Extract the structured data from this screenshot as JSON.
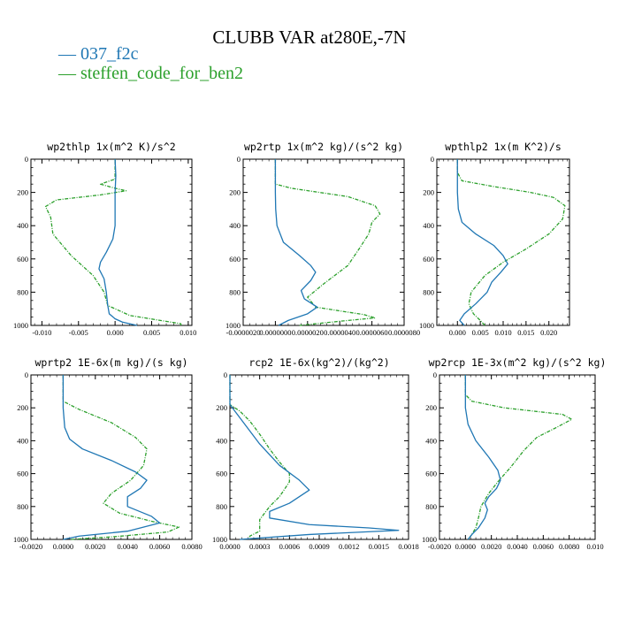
{
  "title": "CLUBB VAR at280E,-7N",
  "legend": [
    {
      "label": "037_f2c",
      "color": "#1f77b4"
    },
    {
      "label": "steffen_code_for_ben2",
      "color": "#2ca02c"
    }
  ],
  "chart_data": [
    {
      "type": "line",
      "title": "wp2thlp  1x(m^2 K)/s^2",
      "ylim": [
        1000,
        0
      ],
      "yticks": [
        "0",
        "200",
        "400",
        "600",
        "800",
        "1000"
      ],
      "xlim": [
        -0.0115,
        0.0105
      ],
      "xticks": [
        -0.01,
        -0.005,
        0.0,
        0.005,
        0.01
      ],
      "xtick_labels": [
        "-0.010",
        "-0.005",
        "0.000",
        "0.005",
        "0.010"
      ],
      "series": [
        {
          "name": "037_f2c",
          "color": "#1f77b4",
          "dashed": false,
          "points": [
            [
              0.0,
              0
            ],
            [
              0.0001,
              100
            ],
            [
              0.0,
              200
            ],
            [
              0.0,
              300
            ],
            [
              0.0,
              400
            ],
            [
              -0.0003,
              480
            ],
            [
              -0.0012,
              560
            ],
            [
              -0.002,
              620
            ],
            [
              -0.0022,
              660
            ],
            [
              -0.0015,
              720
            ],
            [
              -0.0012,
              800
            ],
            [
              -0.001,
              880
            ],
            [
              -0.0008,
              930
            ],
            [
              0.0,
              960
            ],
            [
              0.001,
              980
            ],
            [
              0.003,
              1000
            ]
          ]
        },
        {
          "name": "steffen_code_for_ben2",
          "color": "#2ca02c",
          "dashed": true,
          "points": [
            [
              0.0,
              0
            ],
            [
              0.0,
              120
            ],
            [
              -0.002,
              150
            ],
            [
              0.0,
              175
            ],
            [
              0.0015,
              190
            ],
            [
              -0.002,
              215
            ],
            [
              -0.008,
              245
            ],
            [
              -0.0095,
              285
            ],
            [
              -0.0088,
              350
            ],
            [
              -0.0085,
              450
            ],
            [
              -0.006,
              580
            ],
            [
              -0.003,
              700
            ],
            [
              -0.0015,
              800
            ],
            [
              -0.001,
              880
            ],
            [
              0.002,
              940
            ],
            [
              0.009,
              990
            ],
            [
              0.009,
              1000
            ]
          ]
        }
      ]
    },
    {
      "type": "line",
      "title": "wp2rtp  1x(m^2 kg)/(s^2 kg)",
      "ylim": [
        1000,
        0
      ],
      "yticks": [
        "0",
        "200",
        "400",
        "600",
        "800",
        "1000"
      ],
      "xlim": [
        -2e-06,
        8e-06
      ],
      "xticks": [
        -2e-06,
        0.0,
        2e-06,
        4e-06,
        6e-06,
        8e-06
      ],
      "xtick_labels": [
        "-0.0000020",
        "0.0000000",
        "0.0000020",
        "0.0000040",
        "0.0000060",
        "0.0000080"
      ],
      "series": [
        {
          "name": "037_f2c",
          "color": "#1f77b4",
          "dashed": false,
          "points": [
            [
              0.0,
              0
            ],
            [
              0.0,
              200
            ],
            [
              2e-08,
              300
            ],
            [
              1e-07,
              400
            ],
            [
              5e-07,
              500
            ],
            [
              1.5e-06,
              580
            ],
            [
              2.2e-06,
              640
            ],
            [
              2.5e-06,
              680
            ],
            [
              2.2e-06,
              730
            ],
            [
              1.6e-06,
              790
            ],
            [
              1.8e-06,
              840
            ],
            [
              2.6e-06,
              890
            ],
            [
              2e-06,
              930
            ],
            [
              8e-07,
              970
            ],
            [
              2e-07,
              1000
            ]
          ]
        },
        {
          "name": "steffen_code_for_ben2",
          "color": "#2ca02c",
          "dashed": true,
          "points": [
            [
              0.0,
              0
            ],
            [
              0.0,
              150
            ],
            [
              1e-06,
              175
            ],
            [
              4.5e-06,
              225
            ],
            [
              6.2e-06,
              280
            ],
            [
              6.5e-06,
              330
            ],
            [
              6e-06,
              380
            ],
            [
              5.8e-06,
              450
            ],
            [
              5.2e-06,
              540
            ],
            [
              4.5e-06,
              640
            ],
            [
              3e-06,
              750
            ],
            [
              2e-06,
              830
            ],
            [
              2.5e-06,
              890
            ],
            [
              5.5e-06,
              935
            ],
            [
              6.2e-06,
              955
            ],
            [
              4e-06,
              975
            ],
            [
              1.5e-06,
              1000
            ]
          ]
        }
      ]
    },
    {
      "type": "line",
      "title": "wpthlp2  1x(m K^2)/s",
      "ylim": [
        1000,
        0
      ],
      "yticks": [
        "0",
        "200",
        "400",
        "600",
        "800",
        "1000"
      ],
      "xlim": [
        -0.0045,
        0.0245
      ],
      "xticks": [
        0.0,
        0.005,
        0.01,
        0.015,
        0.02
      ],
      "xtick_labels": [
        "0.000",
        "0.005",
        "0.010",
        "0.015",
        "0.020"
      ],
      "series": [
        {
          "name": "037_f2c",
          "color": "#1f77b4",
          "dashed": false,
          "points": [
            [
              0.0,
              0
            ],
            [
              0.0,
              200
            ],
            [
              0.0002,
              300
            ],
            [
              0.001,
              380
            ],
            [
              0.004,
              450
            ],
            [
              0.008,
              520
            ],
            [
              0.01,
              580
            ],
            [
              0.011,
              630
            ],
            [
              0.0095,
              680
            ],
            [
              0.0075,
              740
            ],
            [
              0.0065,
              800
            ],
            [
              0.004,
              870
            ],
            [
              0.0015,
              930
            ],
            [
              0.0005,
              970
            ],
            [
              0.0015,
              1000
            ]
          ]
        },
        {
          "name": "steffen_code_for_ben2",
          "color": "#2ca02c",
          "dashed": true,
          "points": [
            [
              0.0,
              0
            ],
            [
              0.0,
              80
            ],
            [
              0.001,
              130
            ],
            [
              0.008,
              165
            ],
            [
              0.016,
              200
            ],
            [
              0.021,
              230
            ],
            [
              0.0235,
              280
            ],
            [
              0.023,
              360
            ],
            [
              0.02,
              450
            ],
            [
              0.015,
              540
            ],
            [
              0.01,
              620
            ],
            [
              0.006,
              700
            ],
            [
              0.003,
              800
            ],
            [
              0.0025,
              870
            ],
            [
              0.0035,
              930
            ],
            [
              0.005,
              970
            ],
            [
              0.006,
              1000
            ]
          ]
        }
      ]
    },
    {
      "type": "line",
      "title": "wprtp2  1E-6x(m kg)/(s kg)",
      "ylim": [
        1000,
        0
      ],
      "yticks": [
        "0",
        "200",
        "400",
        "600",
        "800",
        "1000"
      ],
      "xlim": [
        -0.002,
        0.008
      ],
      "xticks": [
        -0.002,
        0.0,
        0.002,
        0.004,
        0.006,
        0.008
      ],
      "xtick_labels": [
        "-0.0020",
        "0.0000",
        "0.0020",
        "0.0040",
        "0.0060",
        "0.0080"
      ],
      "series": [
        {
          "name": "037_f2c",
          "color": "#1f77b4",
          "dashed": false,
          "points": [
            [
              0.0,
              0
            ],
            [
              0.0,
              200
            ],
            [
              0.0001,
              320
            ],
            [
              0.0004,
              390
            ],
            [
              0.0012,
              450
            ],
            [
              0.003,
              520
            ],
            [
              0.0045,
              590
            ],
            [
              0.0052,
              640
            ],
            [
              0.0048,
              690
            ],
            [
              0.004,
              740
            ],
            [
              0.004,
              800
            ],
            [
              0.0055,
              860
            ],
            [
              0.006,
              900
            ],
            [
              0.004,
              950
            ],
            [
              0.001,
              980
            ],
            [
              0.0,
              1000
            ]
          ]
        },
        {
          "name": "steffen_code_for_ben2",
          "color": "#2ca02c",
          "dashed": true,
          "points": [
            [
              0.0,
              0
            ],
            [
              0.0,
              160
            ],
            [
              0.001,
              210
            ],
            [
              0.003,
              290
            ],
            [
              0.0045,
              380
            ],
            [
              0.0052,
              450
            ],
            [
              0.005,
              550
            ],
            [
              0.0042,
              640
            ],
            [
              0.003,
              720
            ],
            [
              0.0025,
              780
            ],
            [
              0.0035,
              840
            ],
            [
              0.0055,
              890
            ],
            [
              0.0072,
              925
            ],
            [
              0.0065,
              955
            ],
            [
              0.003,
              985
            ],
            [
              0.0005,
              1000
            ]
          ]
        }
      ]
    },
    {
      "type": "line",
      "title": "rcp2  1E-6x(kg^2)/(kg^2)",
      "ylim": [
        1000,
        0
      ],
      "yticks": [
        "0",
        "200",
        "400",
        "600",
        "800",
        "1000"
      ],
      "xlim": [
        0.0,
        0.0018
      ],
      "xticks": [
        0.0,
        0.0003,
        0.0006,
        0.0009,
        0.0012,
        0.0015,
        0.0018
      ],
      "xtick_labels": [
        "0.0000",
        "0.0003",
        "0.0006",
        "0.0009",
        "0.0012",
        "0.0015",
        "0.0018"
      ],
      "series": [
        {
          "name": "037_f2c",
          "color": "#1f77b4",
          "dashed": false,
          "points": [
            [
              0.0,
              0
            ],
            [
              0.0,
              180
            ],
            [
              0.0001,
              260
            ],
            [
              0.0002,
              340
            ],
            [
              0.0003,
              420
            ],
            [
              0.0005,
              550
            ],
            [
              0.0007,
              640
            ],
            [
              0.0008,
              700
            ],
            [
              0.0006,
              780
            ],
            [
              0.0004,
              830
            ],
            [
              0.0004,
              870
            ],
            [
              0.0008,
              910
            ],
            [
              0.0014,
              930
            ],
            [
              0.0017,
              945
            ],
            [
              0.0008,
              970
            ],
            [
              0.0001,
              1000
            ]
          ]
        },
        {
          "name": "steffen_code_for_ben2",
          "color": "#2ca02c",
          "dashed": true,
          "points": [
            [
              0.0,
              0
            ],
            [
              0.0,
              180
            ],
            [
              0.0001,
              220
            ],
            [
              0.0002,
              280
            ],
            [
              0.0003,
              360
            ],
            [
              0.0004,
              450
            ],
            [
              0.0005,
              530
            ],
            [
              0.0006,
              600
            ],
            [
              0.0006,
              650
            ],
            [
              0.0005,
              740
            ],
            [
              0.0004,
              800
            ],
            [
              0.0003,
              880
            ],
            [
              0.0003,
              950
            ],
            [
              0.0002,
              980
            ],
            [
              0.0002,
              1000
            ]
          ]
        }
      ]
    },
    {
      "type": "line",
      "title": "wp2rcp  1E-3x(m^2 kg)/(s^2 kg)",
      "ylim": [
        1000,
        0
      ],
      "yticks": [
        "0",
        "200",
        "400",
        "600",
        "800",
        "1000"
      ],
      "xlim": [
        -0.002,
        0.01
      ],
      "xticks": [
        -0.002,
        0.0,
        0.002,
        0.004,
        0.006,
        0.008,
        0.01
      ],
      "xtick_labels": [
        "-0.0020",
        "0.0000",
        "0.0020",
        "0.0040",
        "0.0060",
        "0.0080",
        "0.010"
      ],
      "series": [
        {
          "name": "037_f2c",
          "color": "#1f77b4",
          "dashed": false,
          "points": [
            [
              0.0,
              0
            ],
            [
              0.0,
              200
            ],
            [
              0.0002,
              300
            ],
            [
              0.0008,
              400
            ],
            [
              0.0018,
              500
            ],
            [
              0.0025,
              580
            ],
            [
              0.0027,
              640
            ],
            [
              0.0024,
              690
            ],
            [
              0.0018,
              740
            ],
            [
              0.0015,
              780
            ],
            [
              0.0017,
              820
            ],
            [
              0.0015,
              870
            ],
            [
              0.001,
              930
            ],
            [
              0.0005,
              970
            ],
            [
              0.0002,
              1000
            ]
          ]
        },
        {
          "name": "steffen_code_for_ben2",
          "color": "#2ca02c",
          "dashed": true,
          "points": [
            [
              0.0,
              0
            ],
            [
              0.0,
              120
            ],
            [
              0.0005,
              160
            ],
            [
              0.003,
              200
            ],
            [
              0.0075,
              240
            ],
            [
              0.0082,
              270
            ],
            [
              0.007,
              320
            ],
            [
              0.0055,
              380
            ],
            [
              0.0045,
              460
            ],
            [
              0.0035,
              560
            ],
            [
              0.0025,
              650
            ],
            [
              0.0018,
              720
            ],
            [
              0.0012,
              800
            ],
            [
              0.001,
              870
            ],
            [
              0.0008,
              930
            ],
            [
              0.0004,
              980
            ],
            [
              0.0002,
              1000
            ]
          ]
        }
      ]
    }
  ]
}
